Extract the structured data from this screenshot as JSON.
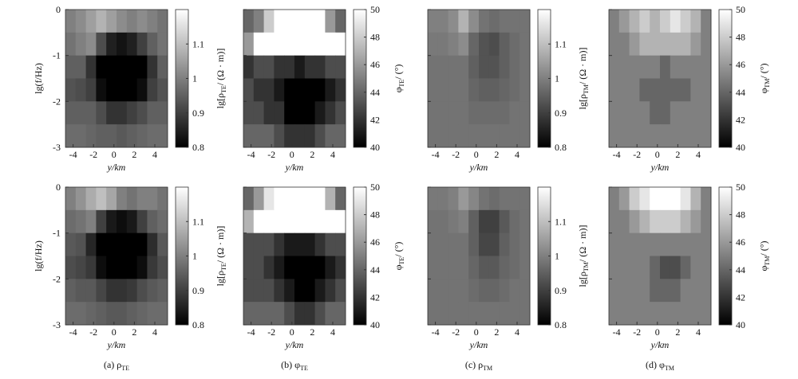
{
  "chart_data": [
    {
      "type": "heatmap",
      "xlabel": "y/km",
      "ylabel": "lg(f/Hz)",
      "xlim": [
        -4.75,
        5.25
      ],
      "ylim": [
        -3,
        0
      ],
      "xticks": [
        -4,
        -2,
        0,
        2,
        4
      ],
      "yticks": [
        0,
        -1,
        -2,
        -3
      ],
      "clim": [
        0.8,
        1.2
      ],
      "cticks": [
        0.8,
        0.9,
        1,
        1.1
      ],
      "clabel": [
        "lg[ρ",
        "TE",
        "/ (Ω · m)]"
      ],
      "values": [
        [
          1.0,
          1.02,
          1.05,
          1.08,
          1.05,
          1.02,
          1.0,
          1.02,
          1.0,
          0.98
        ],
        [
          0.98,
          1.0,
          1.02,
          0.92,
          0.85,
          0.83,
          0.85,
          0.9,
          0.95,
          0.98
        ],
        [
          0.95,
          0.95,
          0.88,
          0.8,
          0.8,
          0.8,
          0.8,
          0.8,
          0.88,
          0.95
        ],
        [
          0.93,
          0.92,
          0.9,
          0.82,
          0.8,
          0.8,
          0.8,
          0.82,
          0.9,
          0.93
        ],
        [
          0.95,
          0.95,
          0.95,
          0.92,
          0.88,
          0.88,
          0.9,
          0.92,
          0.95,
          0.95
        ],
        [
          0.97,
          0.97,
          0.96,
          0.95,
          0.95,
          0.94,
          0.95,
          0.96,
          0.97,
          0.97
        ]
      ]
    },
    {
      "type": "heatmap",
      "xlabel": "y/km",
      "xlim": [
        -4.75,
        5.25
      ],
      "ylim": [
        -3,
        0
      ],
      "xticks": [
        -4,
        -2,
        0,
        2,
        4
      ],
      "yticks": [
        0,
        -1,
        -2,
        -3
      ],
      "clim": [
        40,
        50
      ],
      "cticks": [
        40,
        42,
        44,
        46,
        48,
        50
      ],
      "clabel": [
        "φ",
        "TE",
        "/ (°)"
      ],
      "values": [
        [
          44,
          45,
          48,
          50,
          50,
          50,
          50,
          50,
          46,
          44
        ],
        [
          46,
          50,
          50,
          50,
          50,
          50,
          50,
          50,
          50,
          50
        ],
        [
          42,
          43,
          43,
          42,
          42,
          41,
          42,
          42,
          43,
          43
        ],
        [
          43,
          42,
          42,
          41,
          40,
          40,
          40,
          40,
          41,
          42
        ],
        [
          43,
          43,
          42,
          42,
          40,
          40,
          40,
          41,
          42,
          43
        ],
        [
          44,
          44,
          44,
          43,
          42,
          42,
          42,
          43,
          44,
          44
        ]
      ]
    },
    {
      "type": "heatmap",
      "xlabel": "y/km",
      "xlim": [
        -4.75,
        5.25
      ],
      "ylim": [
        -3,
        0
      ],
      "xticks": [
        -4,
        -2,
        0,
        2,
        4
      ],
      "yticks": [
        0,
        -1,
        -2,
        -3
      ],
      "clim": [
        0.8,
        1.2
      ],
      "cticks": [
        0.8,
        0.9,
        1,
        1.1
      ],
      "clabel": [
        "lg[ρ",
        "TM",
        "/ (Ω · m)]"
      ],
      "values": [
        [
          1.0,
          1.0,
          1.02,
          1.08,
          1.02,
          0.98,
          0.97,
          0.98,
          0.98,
          0.98
        ],
        [
          0.99,
          0.99,
          1.0,
          1.02,
          0.96,
          0.93,
          0.92,
          0.95,
          0.97,
          0.98
        ],
        [
          0.98,
          0.98,
          0.98,
          0.98,
          0.95,
          0.93,
          0.93,
          0.95,
          0.97,
          0.98
        ],
        [
          0.98,
          0.98,
          0.98,
          0.98,
          0.96,
          0.95,
          0.95,
          0.96,
          0.97,
          0.98
        ],
        [
          0.98,
          0.98,
          0.98,
          0.98,
          0.97,
          0.97,
          0.97,
          0.97,
          0.98,
          0.98
        ],
        [
          0.98,
          0.98,
          0.98,
          0.98,
          0.98,
          0.98,
          0.98,
          0.98,
          0.98,
          0.98
        ]
      ]
    },
    {
      "type": "heatmap",
      "xlabel": "y/km",
      "xlim": [
        -4.75,
        5.25
      ],
      "ylim": [
        -3,
        0
      ],
      "xticks": [
        -4,
        -2,
        0,
        2,
        4
      ],
      "yticks": [
        0,
        -1,
        -2,
        -3
      ],
      "clim": [
        40,
        50
      ],
      "cticks": [
        40,
        42,
        44,
        46,
        48,
        50
      ],
      "clabel": [
        "φ",
        "TM",
        "/ (°)"
      ],
      "values": [
        [
          45,
          46,
          47,
          48,
          47,
          48,
          49,
          48,
          47,
          45
        ],
        [
          45,
          45,
          46,
          47,
          47,
          47,
          47,
          47,
          46,
          45
        ],
        [
          45,
          45,
          45,
          45,
          45,
          44,
          45,
          45,
          45,
          45
        ],
        [
          45,
          45,
          45,
          44,
          44,
          44,
          44,
          44,
          45,
          45
        ],
        [
          45,
          45,
          45,
          45,
          44,
          44,
          45,
          45,
          45,
          45
        ],
        [
          45,
          45,
          45,
          45,
          45,
          45,
          45,
          45,
          45,
          45
        ]
      ]
    },
    {
      "type": "heatmap",
      "xlabel": "y/km",
      "ylabel": "lg(f/Hz)",
      "xlim": [
        -4.75,
        5.25
      ],
      "ylim": [
        -3,
        0
      ],
      "xticks": [
        -4,
        -2,
        0,
        2,
        4
      ],
      "yticks": [
        0,
        -1,
        -2,
        -3
      ],
      "clim": [
        0.8,
        1.2
      ],
      "cticks": [
        0.8,
        0.9,
        1,
        1.1
      ],
      "clabel": [
        "lg[ρ",
        "TE",
        "/ (Ω · m)]"
      ],
      "values": [
        [
          1.0,
          1.03,
          1.07,
          1.1,
          1.06,
          1.0,
          0.98,
          1.0,
          1.0,
          0.98
        ],
        [
          0.97,
          0.98,
          1.0,
          0.9,
          0.84,
          0.82,
          0.84,
          0.9,
          0.95,
          0.97
        ],
        [
          0.94,
          0.93,
          0.86,
          0.8,
          0.8,
          0.8,
          0.8,
          0.8,
          0.87,
          0.94
        ],
        [
          0.92,
          0.91,
          0.89,
          0.82,
          0.8,
          0.8,
          0.8,
          0.82,
          0.89,
          0.92
        ],
        [
          0.95,
          0.94,
          0.94,
          0.91,
          0.88,
          0.88,
          0.89,
          0.92,
          0.94,
          0.95
        ],
        [
          0.97,
          0.97,
          0.96,
          0.95,
          0.94,
          0.94,
          0.95,
          0.96,
          0.97,
          0.97
        ]
      ]
    },
    {
      "type": "heatmap",
      "xlabel": "y/km",
      "xlim": [
        -4.75,
        5.25
      ],
      "ylim": [
        -3,
        0
      ],
      "xticks": [
        -4,
        -2,
        0,
        2,
        4
      ],
      "yticks": [
        0,
        -1,
        -2,
        -3
      ],
      "clim": [
        40,
        50
      ],
      "cticks": [
        40,
        42,
        44,
        46,
        48,
        50
      ],
      "clabel": [
        "φ",
        "TE",
        "/ (°)"
      ],
      "values": [
        [
          44,
          46,
          49,
          50,
          50,
          50,
          50,
          50,
          47,
          44
        ],
        [
          47,
          50,
          50,
          50,
          50,
          50,
          50,
          50,
          50,
          50
        ],
        [
          43,
          43,
          43,
          42,
          41,
          41,
          41,
          42,
          43,
          43
        ],
        [
          43,
          43,
          42,
          41,
          40,
          40,
          40,
          40,
          41,
          42
        ],
        [
          43,
          43,
          43,
          42,
          41,
          40,
          40,
          41,
          42,
          43
        ],
        [
          44,
          44,
          44,
          44,
          43,
          42,
          42,
          43,
          44,
          44
        ]
      ]
    },
    {
      "type": "heatmap",
      "xlabel": "y/km",
      "xlim": [
        -4.75,
        5.25
      ],
      "ylim": [
        -3,
        0
      ],
      "xticks": [
        -4,
        -2,
        0,
        2,
        4
      ],
      "yticks": [
        0,
        -1,
        -2,
        -3
      ],
      "clim": [
        0.8,
        1.2
      ],
      "cticks": [
        0.8,
        0.9,
        1,
        1.1
      ],
      "clabel": [
        "lg[ρ",
        "TM",
        "/ (Ω · m)]"
      ],
      "values": [
        [
          0.99,
          0.99,
          1.0,
          1.04,
          1.01,
          0.98,
          0.97,
          0.98,
          0.98,
          0.98
        ],
        [
          0.98,
          0.98,
          0.99,
          1.0,
          0.95,
          0.9,
          0.9,
          0.94,
          0.97,
          0.98
        ],
        [
          0.98,
          0.98,
          0.98,
          0.98,
          0.95,
          0.91,
          0.91,
          0.95,
          0.97,
          0.98
        ],
        [
          0.98,
          0.98,
          0.98,
          0.98,
          0.96,
          0.94,
          0.94,
          0.96,
          0.97,
          0.98
        ],
        [
          0.98,
          0.98,
          0.98,
          0.98,
          0.97,
          0.96,
          0.96,
          0.97,
          0.98,
          0.98
        ],
        [
          0.98,
          0.98,
          0.98,
          0.98,
          0.98,
          0.98,
          0.98,
          0.98,
          0.98,
          0.98
        ]
      ]
    },
    {
      "type": "heatmap",
      "xlabel": "y/km",
      "xlim": [
        -4.75,
        5.25
      ],
      "ylim": [
        -3,
        0
      ],
      "xticks": [
        -4,
        -2,
        0,
        2,
        4
      ],
      "yticks": [
        0,
        -1,
        -2,
        -3
      ],
      "clim": [
        40,
        50
      ],
      "cticks": [
        40,
        42,
        44,
        46,
        48,
        50
      ],
      "clabel": [
        "φ",
        "TM",
        "/ (°)"
      ],
      "values": [
        [
          45,
          46,
          48,
          49,
          50,
          50,
          50,
          49,
          47,
          45
        ],
        [
          45,
          45,
          46,
          47,
          48,
          48,
          48,
          47,
          46,
          45
        ],
        [
          45,
          45,
          45,
          45,
          45,
          45,
          45,
          45,
          45,
          45
        ],
        [
          45,
          45,
          45,
          45,
          44,
          43,
          43,
          44,
          45,
          45
        ],
        [
          45,
          45,
          45,
          45,
          44,
          44,
          44,
          45,
          45,
          45
        ],
        [
          45,
          45,
          45,
          45,
          45,
          45,
          45,
          45,
          45,
          45
        ]
      ]
    }
  ],
  "captions": [
    [
      "(a)  ρ",
      "TE"
    ],
    [
      "(b)  φ",
      "TE"
    ],
    [
      "(c)  ρ",
      "TM"
    ],
    [
      "(d)  φ",
      "TM"
    ]
  ]
}
